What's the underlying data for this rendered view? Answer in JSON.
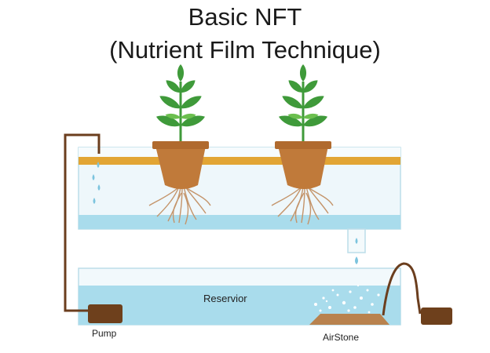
{
  "title": {
    "line1": "Basic NFT",
    "line2": "(Nutrient Film Technique)"
  },
  "labels": {
    "reservoir": "Reservior",
    "pump": "Pump",
    "airstone": "AirStone"
  },
  "colors": {
    "water": "#a9dcec",
    "water_light": "#dff1f8",
    "tank_edge": "#9ccfe0",
    "channel_rail": "#e2a534",
    "pot": "#c07a3a",
    "pot_rim": "#b06a2e",
    "roots": "#c4946a",
    "leaf": "#3f9a3a",
    "leaf_light": "#6bbf4e",
    "pipe": "#6b3e1e",
    "pump": "#6e401c",
    "airstone": "#b9824e",
    "drop": "#7cc4de"
  },
  "icons": [
    "plant-icon",
    "pot-icon",
    "pump-icon",
    "airstone-icon",
    "water-drop-icon"
  ]
}
